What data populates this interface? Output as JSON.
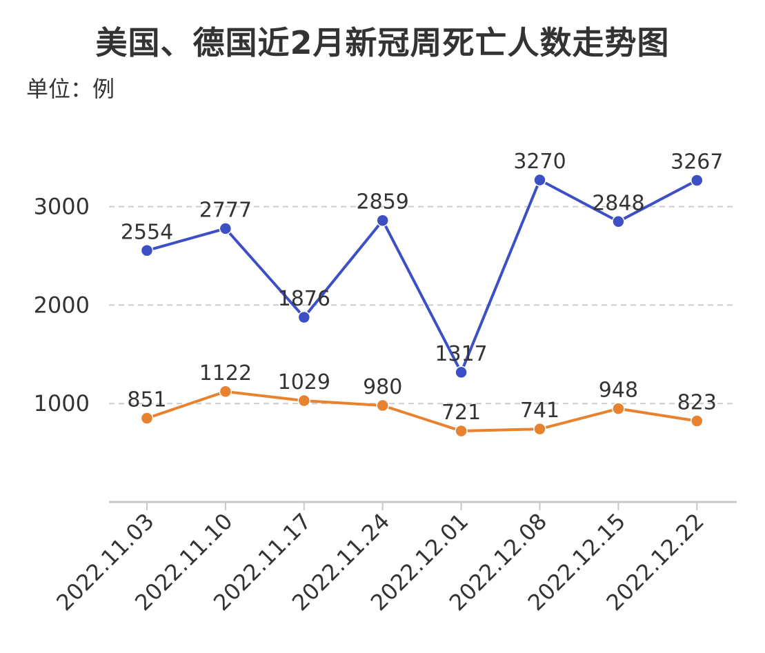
{
  "title": "美国、德国近2月新冠周死亡人数走势图",
  "unit_label": "单位：例",
  "chart_data": {
    "type": "line",
    "categories": [
      "2022.11.03",
      "2022.11.10",
      "2022.11.17",
      "2022.11.24",
      "2022.12.01",
      "2022.12.08",
      "2022.12.15",
      "2022.12.22"
    ],
    "series": [
      {
        "values": [
          2554,
          2777,
          1876,
          2859,
          1317,
          3270,
          2848,
          3267
        ],
        "color": "#3d4fc5"
      },
      {
        "values": [
          851,
          1122,
          1029,
          980,
          721,
          741,
          948,
          823
        ],
        "color": "#e8822f"
      }
    ],
    "yticks": [
      1000,
      2000,
      3000
    ],
    "ylim": [
      0,
      3700
    ],
    "grid": true,
    "legend": "none"
  }
}
